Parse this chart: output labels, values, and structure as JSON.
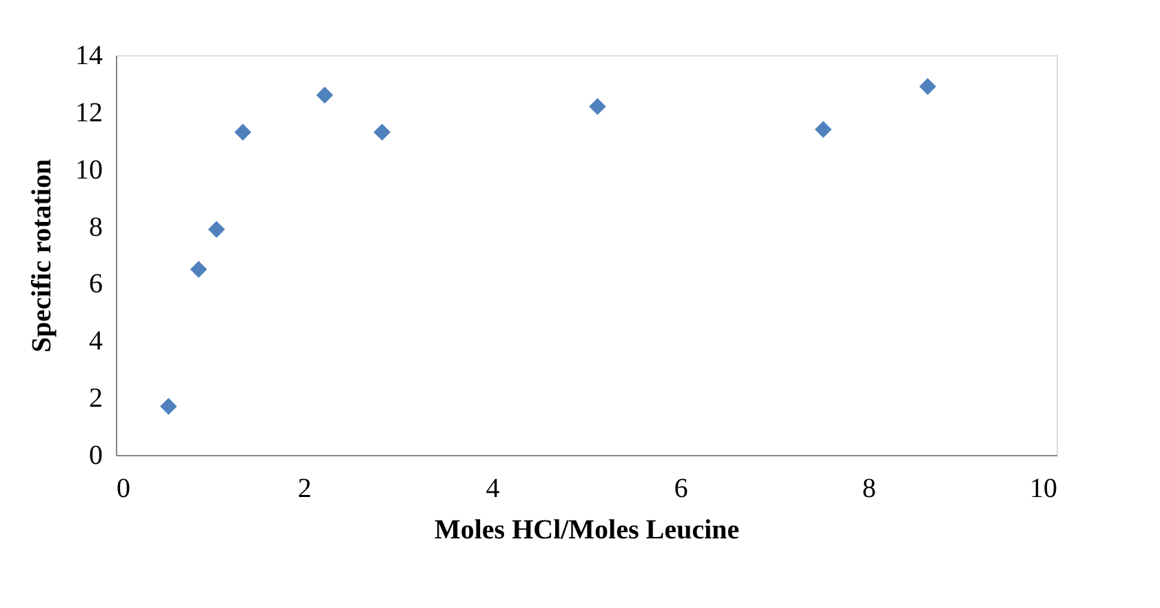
{
  "chart_data": {
    "type": "scatter",
    "xlabel": "Moles HCl/Moles Leucine",
    "ylabel": "Specific rotation",
    "x": [
      0.56,
      0.88,
      1.07,
      1.35,
      2.22,
      2.83,
      5.12,
      7.52,
      8.63
    ],
    "series": [
      {
        "color": "#4f81bd",
        "values": [
          1.7,
          6.5,
          7.9,
          11.3,
          12.6,
          11.3,
          12.2,
          11.4,
          12.9
        ]
      }
    ],
    "marker": "diamond",
    "xlim": [
      0,
      10
    ],
    "xticks": [
      0,
      2,
      4,
      6,
      8,
      10
    ],
    "ylim": [
      0,
      14
    ],
    "yticks": [
      0,
      2,
      4,
      6,
      8,
      10,
      12,
      14
    ],
    "grid": false,
    "legend": false
  }
}
